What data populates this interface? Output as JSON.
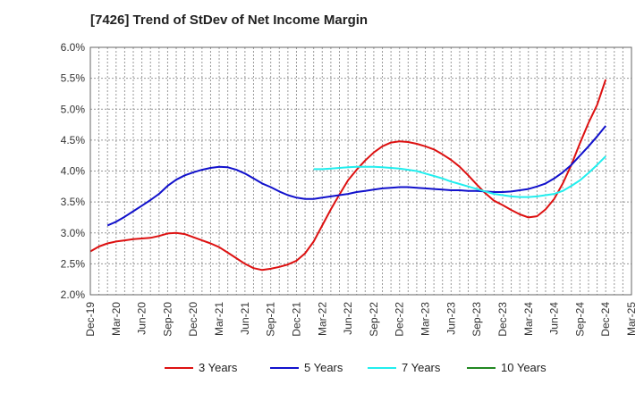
{
  "chart_data": {
    "type": "line",
    "title": "[7426]  Trend of StDev of Net Income Margin",
    "xlabel": "",
    "ylabel": "",
    "x_ticks": [
      "Dec-19",
      "Mar-20",
      "Jun-20",
      "Sep-20",
      "Dec-20",
      "Mar-21",
      "Jun-21",
      "Sep-21",
      "Dec-21",
      "Mar-22",
      "Jun-22",
      "Sep-22",
      "Dec-22",
      "Mar-23",
      "Jun-23",
      "Sep-23",
      "Dec-23",
      "Mar-24",
      "Jun-24",
      "Sep-24",
      "Dec-24",
      "Mar-25"
    ],
    "y_ticks": [
      "2.0%",
      "2.5%",
      "3.0%",
      "3.5%",
      "4.0%",
      "4.5%",
      "5.0%",
      "5.5%",
      "6.0%"
    ],
    "y_tick_values": [
      2.0,
      2.5,
      3.0,
      3.5,
      4.0,
      4.5,
      5.0,
      5.5,
      6.0
    ],
    "ylim": [
      2.0,
      6.0
    ],
    "grid": true,
    "legend_position": "bottom",
    "series": [
      {
        "name": "3 Years",
        "color": "#dd1111",
        "points": [
          [
            "Dec-19",
            2.7
          ],
          [
            "Jan-20",
            2.78
          ],
          [
            "Feb-20",
            2.83
          ],
          [
            "Mar-20",
            2.86
          ],
          [
            "Apr-20",
            2.88
          ],
          [
            "May-20",
            2.9
          ],
          [
            "Jun-20",
            2.91
          ],
          [
            "Jul-20",
            2.92
          ],
          [
            "Aug-20",
            2.95
          ],
          [
            "Sep-20",
            2.99
          ],
          [
            "Oct-20",
            3.0
          ],
          [
            "Nov-20",
            2.98
          ],
          [
            "Dec-20",
            2.93
          ],
          [
            "Jan-21",
            2.88
          ],
          [
            "Feb-21",
            2.83
          ],
          [
            "Mar-21",
            2.77
          ],
          [
            "Apr-21",
            2.68
          ],
          [
            "May-21",
            2.59
          ],
          [
            "Jun-21",
            2.5
          ],
          [
            "Jul-21",
            2.43
          ],
          [
            "Aug-21",
            2.4
          ],
          [
            "Sep-21",
            2.42
          ],
          [
            "Oct-21",
            2.45
          ],
          [
            "Nov-21",
            2.49
          ],
          [
            "Dec-21",
            2.55
          ],
          [
            "Jan-22",
            2.67
          ],
          [
            "Feb-22",
            2.86
          ],
          [
            "Mar-22",
            3.12
          ],
          [
            "Apr-22",
            3.38
          ],
          [
            "May-22",
            3.62
          ],
          [
            "Jun-22",
            3.85
          ],
          [
            "Jul-22",
            4.02
          ],
          [
            "Aug-22",
            4.17
          ],
          [
            "Sep-22",
            4.3
          ],
          [
            "Oct-22",
            4.4
          ],
          [
            "Nov-22",
            4.46
          ],
          [
            "Dec-22",
            4.48
          ],
          [
            "Jan-23",
            4.47
          ],
          [
            "Feb-23",
            4.44
          ],
          [
            "Mar-23",
            4.4
          ],
          [
            "Apr-23",
            4.35
          ],
          [
            "May-23",
            4.27
          ],
          [
            "Jun-23",
            4.18
          ],
          [
            "Jul-23",
            4.07
          ],
          [
            "Aug-23",
            3.93
          ],
          [
            "Sep-23",
            3.78
          ],
          [
            "Oct-23",
            3.64
          ],
          [
            "Nov-23",
            3.52
          ],
          [
            "Dec-23",
            3.45
          ],
          [
            "Jan-24",
            3.37
          ],
          [
            "Feb-24",
            3.3
          ],
          [
            "Mar-24",
            3.25
          ],
          [
            "Apr-24",
            3.27
          ],
          [
            "May-24",
            3.38
          ],
          [
            "Jun-24",
            3.55
          ],
          [
            "Jul-24",
            3.8
          ],
          [
            "Aug-24",
            4.1
          ],
          [
            "Sep-24",
            4.45
          ],
          [
            "Oct-24",
            4.78
          ],
          [
            "Nov-24",
            5.07
          ],
          [
            "Dec-24",
            5.48
          ]
        ]
      },
      {
        "name": "5 Years",
        "color": "#1111cc",
        "points": [
          [
            "Feb-20",
            3.12
          ],
          [
            "Mar-20",
            3.18
          ],
          [
            "Apr-20",
            3.26
          ],
          [
            "May-20",
            3.35
          ],
          [
            "Jun-20",
            3.44
          ],
          [
            "Jul-20",
            3.53
          ],
          [
            "Aug-20",
            3.63
          ],
          [
            "Sep-20",
            3.76
          ],
          [
            "Oct-20",
            3.86
          ],
          [
            "Nov-20",
            3.93
          ],
          [
            "Dec-20",
            3.98
          ],
          [
            "Jan-21",
            4.02
          ],
          [
            "Feb-21",
            4.05
          ],
          [
            "Mar-21",
            4.07
          ],
          [
            "Apr-21",
            4.06
          ],
          [
            "May-21",
            4.02
          ],
          [
            "Jun-21",
            3.96
          ],
          [
            "Jul-21",
            3.88
          ],
          [
            "Aug-21",
            3.8
          ],
          [
            "Sep-21",
            3.74
          ],
          [
            "Oct-21",
            3.67
          ],
          [
            "Nov-21",
            3.61
          ],
          [
            "Dec-21",
            3.57
          ],
          [
            "Jan-22",
            3.55
          ],
          [
            "Feb-22",
            3.55
          ],
          [
            "Mar-22",
            3.57
          ],
          [
            "Apr-22",
            3.59
          ],
          [
            "May-22",
            3.61
          ],
          [
            "Jun-22",
            3.63
          ],
          [
            "Jul-22",
            3.66
          ],
          [
            "Aug-22",
            3.68
          ],
          [
            "Sep-22",
            3.7
          ],
          [
            "Oct-22",
            3.72
          ],
          [
            "Nov-22",
            3.73
          ],
          [
            "Dec-22",
            3.74
          ],
          [
            "Jan-23",
            3.74
          ],
          [
            "Feb-23",
            3.73
          ],
          [
            "Mar-23",
            3.72
          ],
          [
            "Apr-23",
            3.71
          ],
          [
            "May-23",
            3.7
          ],
          [
            "Jun-23",
            3.69
          ],
          [
            "Jul-23",
            3.69
          ],
          [
            "Aug-23",
            3.68
          ],
          [
            "Sep-23",
            3.68
          ],
          [
            "Oct-23",
            3.67
          ],
          [
            "Nov-23",
            3.66
          ],
          [
            "Dec-23",
            3.66
          ],
          [
            "Jan-24",
            3.67
          ],
          [
            "Feb-24",
            3.69
          ],
          [
            "Mar-24",
            3.71
          ],
          [
            "Apr-24",
            3.75
          ],
          [
            "May-24",
            3.8
          ],
          [
            "Jun-24",
            3.88
          ],
          [
            "Jul-24",
            3.98
          ],
          [
            "Aug-24",
            4.1
          ],
          [
            "Sep-24",
            4.25
          ],
          [
            "Oct-24",
            4.4
          ],
          [
            "Nov-24",
            4.56
          ],
          [
            "Dec-24",
            4.73
          ]
        ]
      },
      {
        "name": "7 Years",
        "color": "#22eeee",
        "points": [
          [
            "Feb-22",
            4.03
          ],
          [
            "Mar-22",
            4.03
          ],
          [
            "Apr-22",
            4.04
          ],
          [
            "May-22",
            4.05
          ],
          [
            "Jun-22",
            4.06
          ],
          [
            "Jul-22",
            4.07
          ],
          [
            "Aug-22",
            4.07
          ],
          [
            "Sep-22",
            4.07
          ],
          [
            "Oct-22",
            4.06
          ],
          [
            "Nov-22",
            4.05
          ],
          [
            "Dec-22",
            4.04
          ],
          [
            "Jan-23",
            4.02
          ],
          [
            "Feb-23",
            4.0
          ],
          [
            "Mar-23",
            3.96
          ],
          [
            "Apr-23",
            3.92
          ],
          [
            "May-23",
            3.88
          ],
          [
            "Jun-23",
            3.83
          ],
          [
            "Jul-23",
            3.79
          ],
          [
            "Aug-23",
            3.75
          ],
          [
            "Sep-23",
            3.71
          ],
          [
            "Oct-23",
            3.67
          ],
          [
            "Nov-23",
            3.63
          ],
          [
            "Dec-23",
            3.61
          ],
          [
            "Jan-24",
            3.59
          ],
          [
            "Feb-24",
            3.58
          ],
          [
            "Mar-24",
            3.58
          ],
          [
            "Apr-24",
            3.59
          ],
          [
            "May-24",
            3.61
          ],
          [
            "Jun-24",
            3.63
          ],
          [
            "Jul-24",
            3.68
          ],
          [
            "Aug-24",
            3.76
          ],
          [
            "Sep-24",
            3.85
          ],
          [
            "Oct-24",
            3.97
          ],
          [
            "Nov-24",
            4.1
          ],
          [
            "Dec-24",
            4.24
          ]
        ]
      },
      {
        "name": "10 Years",
        "color": "#228822",
        "points": []
      }
    ]
  }
}
